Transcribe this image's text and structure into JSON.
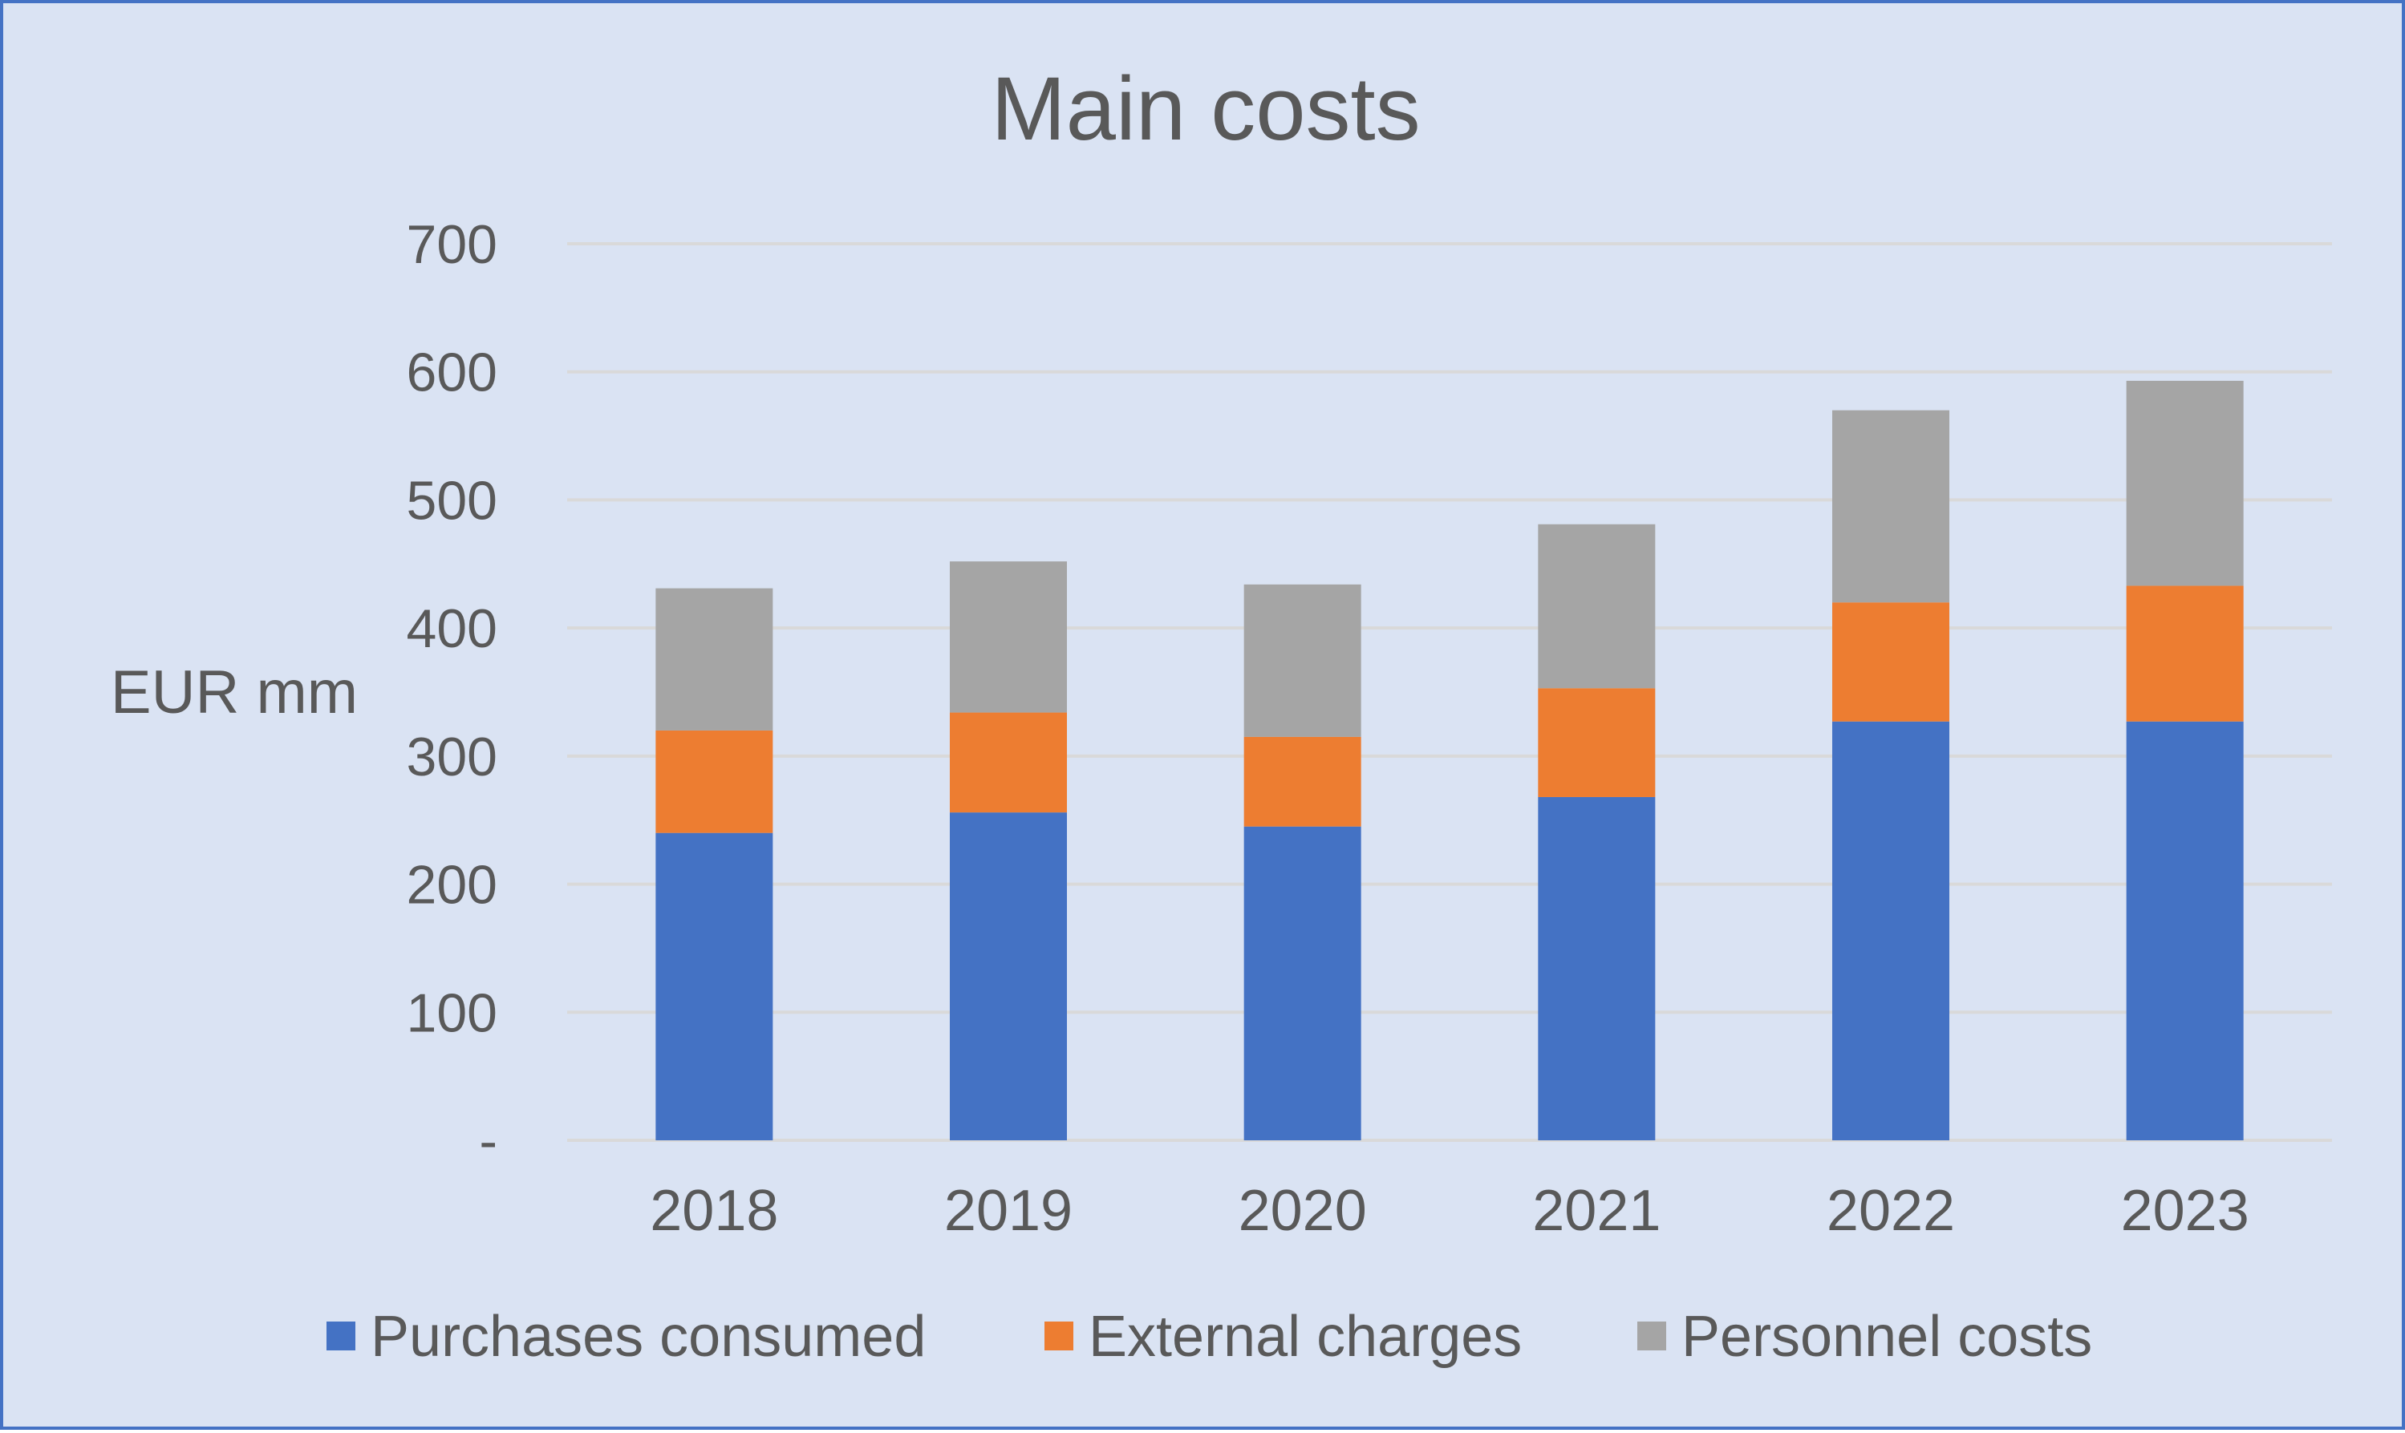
{
  "chart_data": {
    "type": "bar",
    "stacked": true,
    "title": "Main costs",
    "xlabel": "",
    "ylabel": "EUR mm",
    "categories": [
      "2018",
      "2019",
      "2020",
      "2021",
      "2022",
      "2023"
    ],
    "series": [
      {
        "name": "Purchases consumed",
        "color": "#4472c4",
        "values": [
          240,
          256,
          245,
          268,
          327,
          327
        ]
      },
      {
        "name": "External charges",
        "color": "#ed7d31",
        "values": [
          80,
          78,
          70,
          85,
          93,
          106
        ]
      },
      {
        "name": "Personnel costs",
        "color": "#a5a5a5",
        "values": [
          111,
          118,
          119,
          128,
          150,
          160
        ]
      }
    ],
    "ylim": [
      0,
      700
    ],
    "yticks": [
      0,
      100,
      200,
      300,
      400,
      500,
      600,
      700
    ],
    "ytick_labels": [
      "-",
      "100",
      "200",
      "300",
      "400",
      "500",
      "600",
      "700"
    ],
    "grid": true,
    "legend": "bottom",
    "colors": {
      "background": "#dae3f3",
      "border": "#4472c4",
      "gridline": "#d9d9d9",
      "text": "#595959"
    }
  }
}
